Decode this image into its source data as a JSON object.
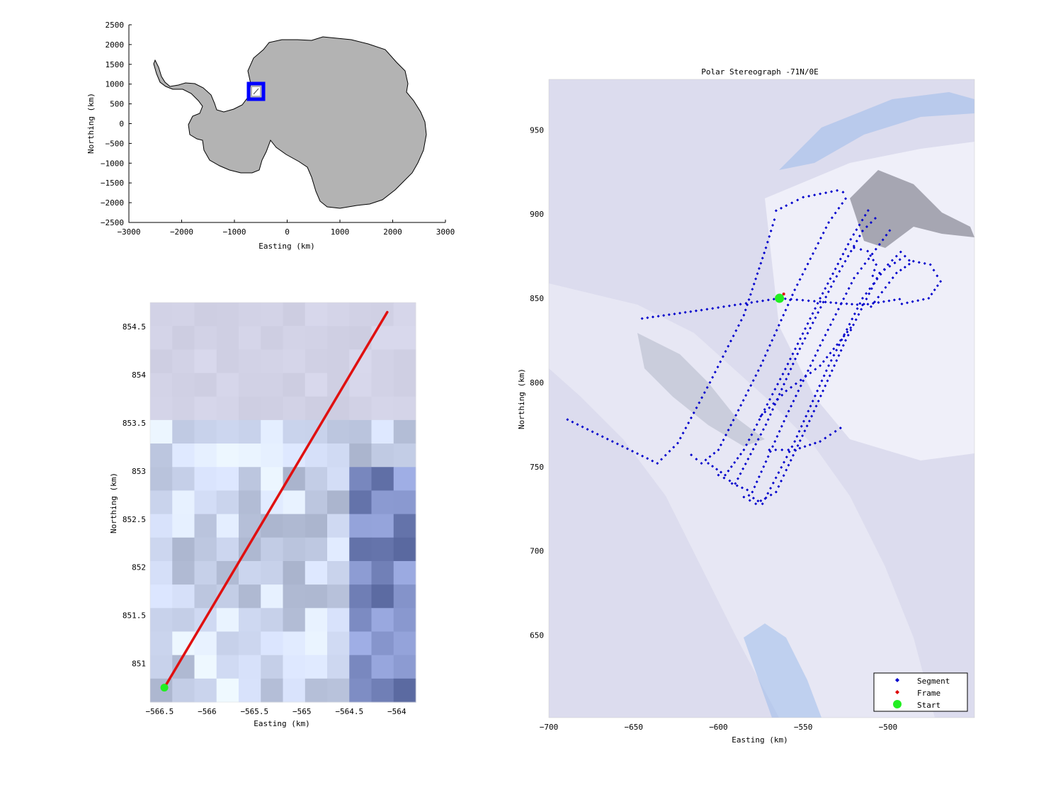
{
  "overview": {
    "xlabel": "Easting (km)",
    "ylabel": "Northing (km)",
    "xticks": [
      -3000,
      -2000,
      -1000,
      0,
      1000,
      2000,
      3000
    ],
    "yticks": [
      2500,
      2000,
      1500,
      1000,
      500,
      0,
      -500,
      -1000,
      -1500,
      -2000,
      -2500
    ],
    "xlim": [
      -3000,
      3000
    ],
    "ylim": [
      -2500,
      2500
    ],
    "land_color": "#b3b3b3",
    "marker_color": "#0000ff",
    "marker_center": [
      -560,
      800
    ]
  },
  "zoom": {
    "xlabel": "Easting (km)",
    "ylabel": "Northing (km)",
    "xticks": [
      "-566.5",
      "-566",
      "-565.5",
      "-565",
      "-564.5",
      "-564"
    ],
    "yticks": [
      "854.5",
      "854",
      "853.5",
      "853",
      "852.5",
      "852",
      "851.5",
      "851"
    ],
    "xlim": [
      -566.6,
      -563.8
    ],
    "ylim": [
      850.6,
      854.75
    ],
    "frame_line": {
      "x": [
        -566.45,
        -564.1
      ],
      "y": [
        850.75,
        854.65
      ],
      "color": "#e01010"
    },
    "start_point": {
      "x": -566.45,
      "y": 850.75,
      "color": "#22ee22"
    }
  },
  "main": {
    "title": "Polar Stereograph -71N/0E",
    "xlabel": "Easting (km)",
    "ylabel": "Northing (km)",
    "xticks": [
      "-700",
      "-650",
      "-600",
      "-550",
      "-500"
    ],
    "yticks": [
      "950",
      "900",
      "850",
      "800",
      "750",
      "700",
      "650"
    ],
    "xlim": [
      -700,
      -449
    ],
    "ylim": [
      601,
      980
    ],
    "legend": {
      "segment": "Segment",
      "frame": "Frame",
      "start": "Start"
    },
    "segment_color": "#0000cc",
    "frame_color": "#dd0000",
    "start_color": "#22ee22",
    "start_point": {
      "x": -564,
      "y": 850
    }
  }
}
